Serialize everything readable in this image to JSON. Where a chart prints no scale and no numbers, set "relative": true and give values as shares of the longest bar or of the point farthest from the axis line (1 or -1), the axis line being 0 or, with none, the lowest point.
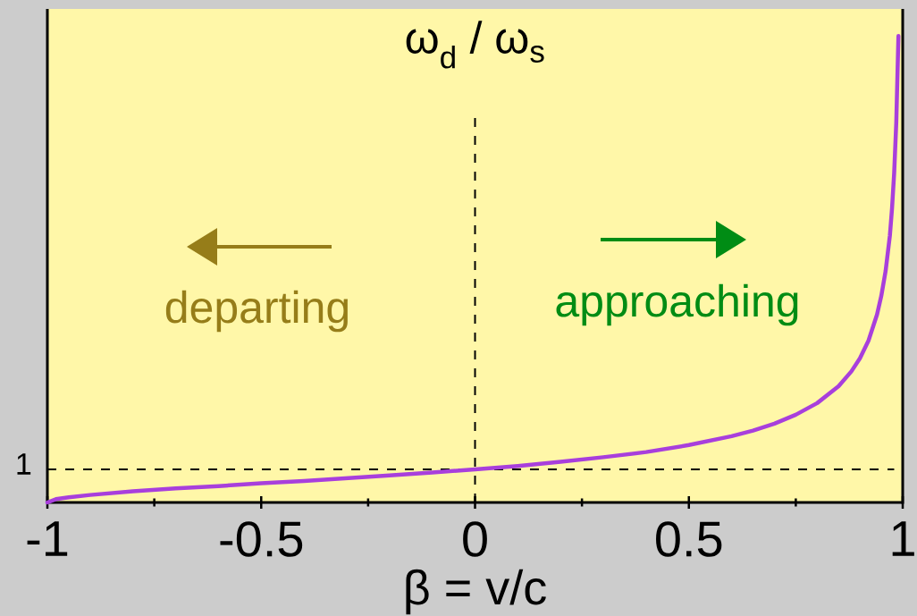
{
  "chart_data": {
    "type": "line",
    "title": "ω$_{d}$ / ω$_{s}$",
    "xlabel": "β = v/c",
    "annotations": [
      "departing",
      "approaching",
      "1"
    ],
    "x": [
      -1,
      -0.98,
      -0.95,
      -0.9,
      -0.8,
      -0.7,
      -0.6,
      -0.5,
      -0.4,
      -0.3,
      -0.2,
      -0.1,
      0,
      0.1,
      0.2,
      0.3,
      0.4,
      0.5,
      0.6,
      0.65,
      0.7,
      0.75,
      0.8,
      0.85,
      0.88,
      0.9,
      0.92,
      0.94,
      0.95,
      0.96,
      0.97,
      0.975,
      0.98,
      0.985,
      0.99
    ],
    "values": [
      0,
      0.007,
      0.011,
      0.016,
      0.024,
      0.03,
      0.035,
      0.041,
      0.046,
      0.052,
      0.058,
      0.064,
      0.071,
      0.078,
      0.087,
      0.097,
      0.108,
      0.123,
      0.142,
      0.154,
      0.169,
      0.188,
      0.213,
      0.249,
      0.281,
      0.309,
      0.347,
      0.403,
      0.443,
      0.496,
      0.572,
      0.63,
      0.706,
      0.815,
      1
    ],
    "color": "#a83fdc",
    "relative": true,
    "xlim": [
      -1,
      1
    ],
    "xticks": [
      -1,
      {
        "value": -0.75,
        "label": null
      },
      -0.5,
      {
        "value": -0.25,
        "label": null
      },
      0,
      {
        "value": 0.25,
        "label": null
      },
      0.5,
      {
        "value": 0.75,
        "label": null
      },
      1
    ],
    "ref_lines": [
      {
        "axis": "y",
        "value": 0.071,
        "line_style": "dashed"
      },
      {
        "axis": "x",
        "value": 0,
        "line_style": "dashed"
      }
    ]
  }
}
